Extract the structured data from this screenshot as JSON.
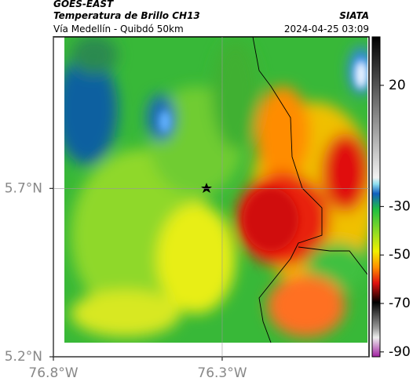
{
  "header": {
    "satellite": "GOES-EAST",
    "product": "Temperatura de Brillo CH13",
    "source": "SIATA",
    "route": "Vía Medellín - Quibdó 50km",
    "timestamp": "2024-04-25 03:09"
  },
  "map": {
    "xlim": [
      -76.8,
      -75.865
    ],
    "ylim": [
      5.2,
      6.15
    ],
    "xticks": [
      {
        "value": -76.8,
        "label": "76.8°W"
      },
      {
        "value": -76.3,
        "label": "76.3°W"
      }
    ],
    "yticks": [
      {
        "value": 5.7,
        "label": "5.7°N"
      },
      {
        "value": 5.2,
        "label": "5.2°N"
      }
    ],
    "grid": true
  },
  "colorbar": {
    "clim": [
      -92,
      40
    ],
    "ticks": [
      20,
      -30,
      -50,
      -70,
      -90
    ]
  }
}
